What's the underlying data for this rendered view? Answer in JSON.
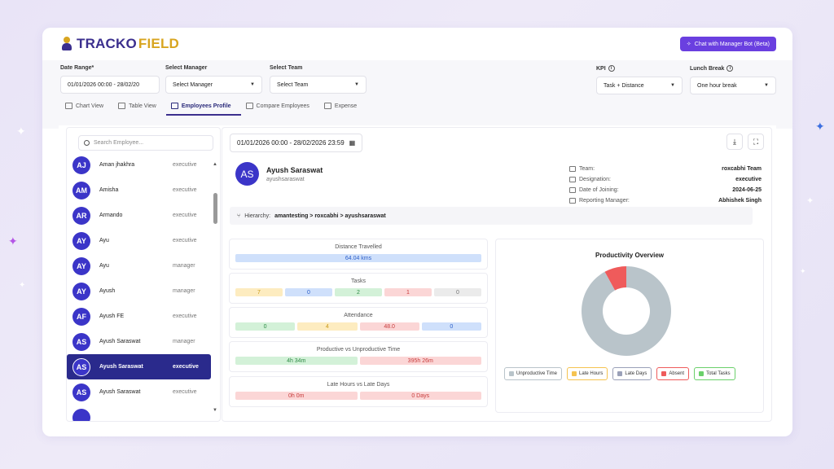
{
  "app": {
    "logo_part1": "TRACKO",
    "logo_part2": "FIELD",
    "chat_button": "Chat with Manager Bot (Beta)"
  },
  "filters": {
    "date_range_label": "Date Range*",
    "date_range_value": "01/01/2026 00:00 - 28/02/20",
    "manager_label": "Select Manager",
    "manager_value": "Select Manager",
    "team_label": "Select Team",
    "team_value": "Select Team",
    "kpi_label": "KPI",
    "kpi_value": "Task + Distance",
    "lunch_label": "Lunch Break",
    "lunch_value": "One hour break"
  },
  "tabs": [
    {
      "label": "Chart View"
    },
    {
      "label": "Table View"
    },
    {
      "label": "Employees Profile"
    },
    {
      "label": "Compare Employees"
    },
    {
      "label": "Expense"
    }
  ],
  "search": {
    "placeholder": "Search Employee..."
  },
  "employees": [
    {
      "initials": "AJ",
      "name": "Aman jhakhra",
      "role": "executive"
    },
    {
      "initials": "AM",
      "name": "Amisha",
      "role": "executive"
    },
    {
      "initials": "AR",
      "name": "Armando",
      "role": "executive"
    },
    {
      "initials": "AY",
      "name": "Ayu",
      "role": "executive"
    },
    {
      "initials": "AY",
      "name": "Ayu",
      "role": "manager"
    },
    {
      "initials": "AY",
      "name": "Ayush",
      "role": "manager"
    },
    {
      "initials": "AF",
      "name": "Ayush FE",
      "role": "executive"
    },
    {
      "initials": "AS",
      "name": "Ayush Saraswat",
      "role": "manager"
    },
    {
      "initials": "AS",
      "name": "Ayush Saraswat",
      "role": "executive"
    },
    {
      "initials": "AS",
      "name": "Ayush Saraswat",
      "role": "executive"
    }
  ],
  "profile": {
    "date_range": "01/01/2026 00:00 - 28/02/2026 23:59",
    "initials": "AS",
    "name": "Ayush Saraswat",
    "username": "ayushsaraswat",
    "team_label": "Team:",
    "team": "roxcabhi Team",
    "designation_label": "Designation:",
    "designation": "executive",
    "doj_label": "Date of Joining:",
    "doj": "2024-06-25",
    "rm_label": "Reporting Manager:",
    "rm": "Abhishek Singh",
    "hierarchy_label": "Hierarchy:",
    "hierarchy": "amantesting > roxcabhi > ayushsaraswat"
  },
  "stats": {
    "distance_title": "Distance Travelled",
    "distance_value": "64.04 kms",
    "tasks_title": "Tasks",
    "tasks": [
      "7",
      "0",
      "2",
      "1",
      "0"
    ],
    "attendance_title": "Attendance",
    "attendance": [
      "0",
      "4",
      "48.0",
      "0"
    ],
    "prod_title": "Productive vs Unproductive Time",
    "prod": [
      "4h 34m",
      "395h 26m"
    ],
    "late_title": "Late Hours vs Late Days",
    "late": [
      "0h 0m",
      "0 Days"
    ]
  },
  "chart_data": {
    "type": "pie",
    "title": "Productivity Overview",
    "categories": [
      "Unproductive Time",
      "Late Hours",
      "Late Days",
      "Absent",
      "Total Tasks"
    ],
    "values": [
      92,
      0,
      0,
      8,
      0
    ],
    "colors": [
      "#b9c4ca",
      "#f5c350",
      "#9aa0b8",
      "#ef5b5b",
      "#6bd06b"
    ],
    "legend_position": "bottom"
  }
}
